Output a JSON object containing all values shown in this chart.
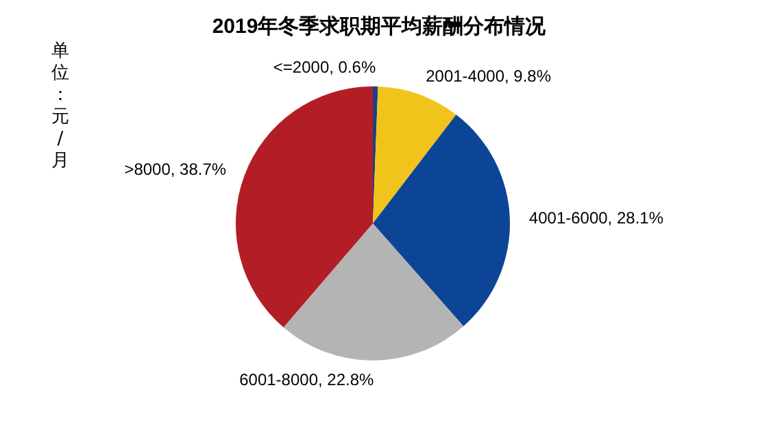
{
  "chart_data": {
    "type": "pie",
    "title": "2019年冬季求职期平均薪酬分布情况",
    "ylabel": "单位：元/月",
    "categories": [
      "<=2000",
      "2001-4000",
      "4001-6000",
      "6001-8000",
      ">8000"
    ],
    "values": [
      0.6,
      9.8,
      28.1,
      22.8,
      38.7
    ],
    "colors": [
      "#1f3f7f",
      "#f1c41c",
      "#0d4596",
      "#b4b4b4",
      "#b31e26"
    ],
    "value_labels": [
      "0.6%",
      "9.8%",
      "28.1%",
      "22.8%",
      "38.7%"
    ],
    "legend": false
  }
}
